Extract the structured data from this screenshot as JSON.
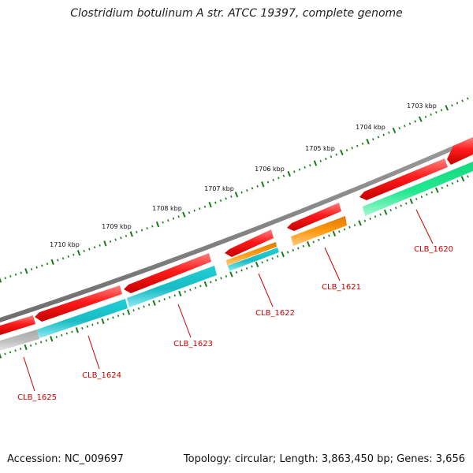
{
  "title": "Clostridium botulinum A str. ATCC 19397, complete genome",
  "footer": {
    "accession": "Accession: NC_009697",
    "topology": "Topology: circular; Length: 3,863,450 bp; Genes: 3,656"
  },
  "colors": {
    "backbone": "#808080",
    "cds": "#ff1a1a",
    "gene_cyan": "#1ecfd6",
    "gene_green": "#22e890",
    "gene_orange": "#ff9a12",
    "gene_gray": "#c0c0c0",
    "tick": "#1a7a1a",
    "label": "#cc0000"
  },
  "scale": {
    "ticks": [
      {
        "kbp": 1703,
        "label": "1703 kbp"
      },
      {
        "kbp": 1704,
        "label": "1704 kbp"
      },
      {
        "kbp": 1705,
        "label": "1705 kbp"
      },
      {
        "kbp": 1706,
        "label": "1706 kbp"
      },
      {
        "kbp": 1707,
        "label": "1707 kbp"
      },
      {
        "kbp": 1708,
        "label": "1708 kbp"
      },
      {
        "kbp": 1709,
        "label": "1709 kbp"
      },
      {
        "kbp": 1710,
        "label": "1710 kbp"
      }
    ]
  },
  "genes": [
    {
      "name": "CLB_1620",
      "label": "CLB_1620"
    },
    {
      "name": "CLB_1621",
      "label": "CLB_1621"
    },
    {
      "name": "CLB_1622",
      "label": "CLB_1622"
    },
    {
      "name": "CLB_1623",
      "label": "CLB_1623"
    },
    {
      "name": "CLB_1624",
      "label": "CLB_1624"
    },
    {
      "name": "CLB_1625",
      "label": "CLB_1625"
    }
  ]
}
